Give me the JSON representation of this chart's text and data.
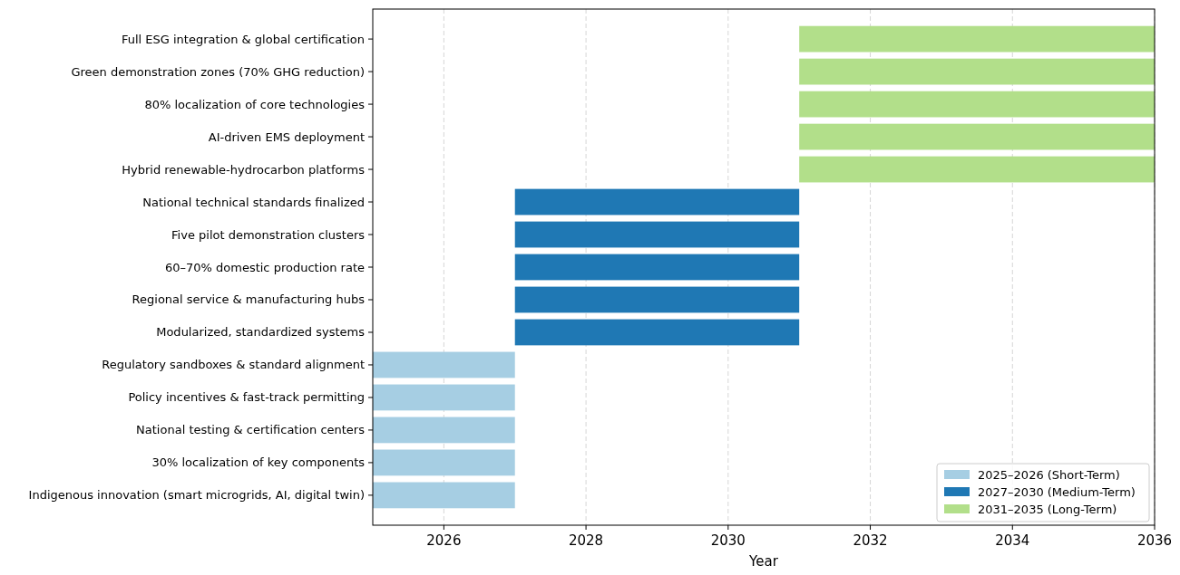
{
  "chart_data": {
    "type": "bar",
    "orientation": "horizontal",
    "xlabel": "Year",
    "categories": [
      "Full ESG integration & global certification",
      "Green demonstration zones (70% GHG reduction)",
      "80% localization of core technologies",
      "AI-driven EMS deployment",
      "Hybrid renewable-hydrocarbon platforms",
      "National technical standards finalized",
      "Five pilot demonstration clusters",
      "60–70% domestic production rate",
      "Regional service & manufacturing hubs",
      "Modularized, standardized systems",
      "Regulatory sandboxes & standard alignment",
      "Policy incentives & fast-track permitting",
      "National testing & certification centers",
      "30% localization of key components",
      "Indigenous innovation (smart microgrids, AI, digital twin)"
    ],
    "series": [
      {
        "name": "2025–2026 (Short-Term)",
        "color": "#a6cee3",
        "values": [
          null,
          null,
          null,
          null,
          null,
          null,
          null,
          null,
          null,
          null,
          2,
          2,
          2,
          2,
          2
        ],
        "base": [
          null,
          null,
          null,
          null,
          null,
          null,
          null,
          null,
          null,
          null,
          2025,
          2025,
          2025,
          2025,
          2025
        ]
      },
      {
        "name": "2027–2030 (Medium-Term)",
        "color": "#1f78b4",
        "values": [
          null,
          null,
          null,
          null,
          null,
          4,
          4,
          4,
          4,
          4,
          null,
          null,
          null,
          null,
          null
        ],
        "base": [
          null,
          null,
          null,
          null,
          null,
          2027,
          2027,
          2027,
          2027,
          2027,
          null,
          null,
          null,
          null,
          null
        ]
      },
      {
        "name": "2031–2035 (Long-Term)",
        "color": "#b2df8a",
        "values": [
          5,
          5,
          5,
          5,
          5,
          null,
          null,
          null,
          null,
          null,
          null,
          null,
          null,
          null,
          null
        ],
        "base": [
          2031,
          2031,
          2031,
          2031,
          2031,
          null,
          null,
          null,
          null,
          null,
          null,
          null,
          null,
          null,
          null
        ]
      }
    ],
    "xlim": [
      2025,
      2036
    ],
    "xticks": [
      2026,
      2028,
      2030,
      2032,
      2034,
      2036
    ],
    "grid": "x",
    "line_style": "dashed",
    "legend": "bottom right"
  }
}
